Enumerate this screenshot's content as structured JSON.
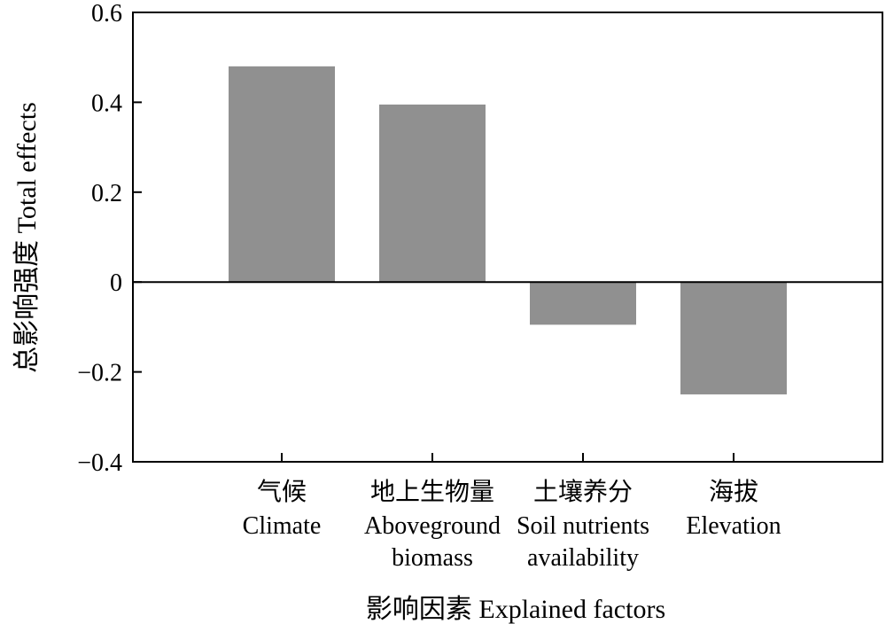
{
  "chart_data": {
    "type": "bar",
    "title": "",
    "xlabel": "影响因素 Explained factors",
    "ylabel": "总影响强度 Total effects",
    "ylim": [
      -0.4,
      0.6
    ],
    "yticks": [
      {
        "value": 0.6,
        "label": "0.6"
      },
      {
        "value": 0.4,
        "label": "0.4"
      },
      {
        "value": 0.2,
        "label": "0.2"
      },
      {
        "value": 0,
        "label": "0"
      },
      {
        "value": -0.2,
        "label": "−0.2"
      },
      {
        "value": -0.4,
        "label": "−0.4"
      }
    ],
    "categories": [
      {
        "zh": "气候",
        "en": [
          "Climate"
        ]
      },
      {
        "zh": "地上生物量",
        "en": [
          "Aboveground",
          "biomass"
        ]
      },
      {
        "zh": "土壤养分",
        "en": [
          "Soil nutrients",
          "availability"
        ]
      },
      {
        "zh": "海拔",
        "en": [
          "Elevation"
        ]
      }
    ],
    "values": [
      0.48,
      0.395,
      -0.095,
      -0.25
    ],
    "bar_color": "#909090",
    "grid": false,
    "zero_line": true
  }
}
